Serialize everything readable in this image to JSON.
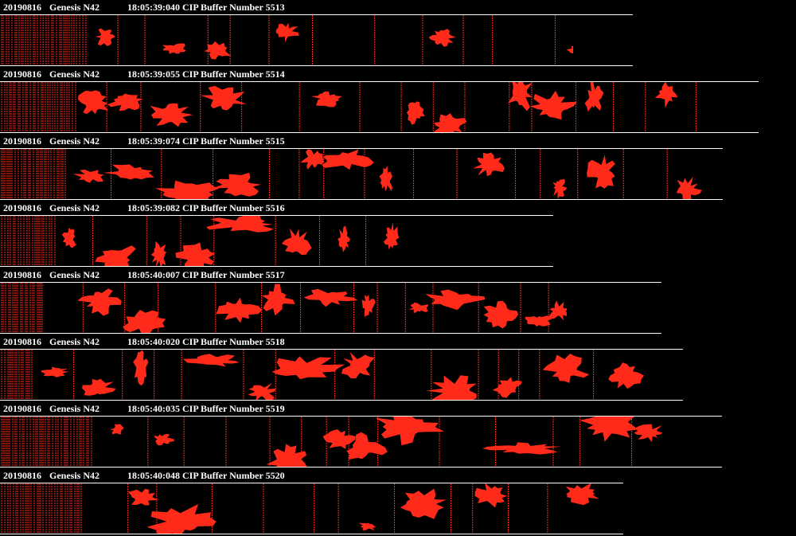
{
  "records": [
    {
      "date": "20190816",
      "probe": "Genesis N42",
      "time": "18:05:39:040",
      "label": "CIP Buffer Number",
      "buffer": "5513"
    },
    {
      "date": "20190816",
      "probe": "Genesis N42",
      "time": "18:05:39:055",
      "label": "CIP Buffer Number",
      "buffer": "5514"
    },
    {
      "date": "20190816",
      "probe": "Genesis N42",
      "time": "18:05:39:074",
      "label": "CIP Buffer Number",
      "buffer": "5515"
    },
    {
      "date": "20190816",
      "probe": "Genesis N42",
      "time": "18:05:39:082",
      "label": "CIP Buffer Number",
      "buffer": "5516"
    },
    {
      "date": "20190816",
      "probe": "Genesis N42",
      "time": "18:05:40:007",
      "label": "CIP Buffer Number",
      "buffer": "5517"
    },
    {
      "date": "20190816",
      "probe": "Genesis N42",
      "time": "18:05:40:020",
      "label": "CIP Buffer Number",
      "buffer": "5518"
    },
    {
      "date": "20190816",
      "probe": "Genesis N42",
      "time": "18:05:40:035",
      "label": "CIP Buffer Number",
      "buffer": "5519"
    },
    {
      "date": "20190816",
      "probe": "Genesis N42",
      "time": "18:05:40:048",
      "label": "CIP Buffer Number",
      "buffer": "5520"
    }
  ],
  "colors": {
    "background": "#000000",
    "particle": "#ff2a1a",
    "text": "#ffffff",
    "separator": "#ffffff"
  }
}
